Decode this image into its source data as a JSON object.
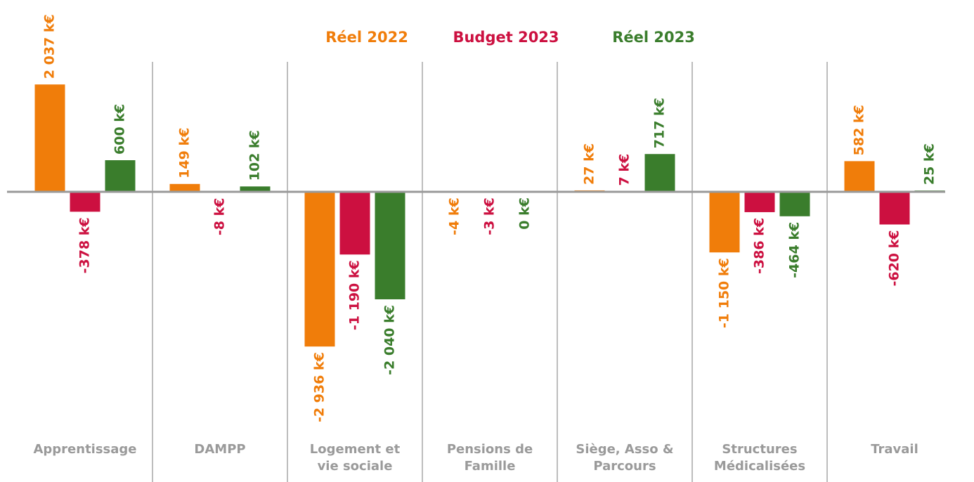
{
  "chart_data": {
    "type": "bar",
    "categories": [
      "Apprentissage",
      "DAMPP",
      "Logement et vie sociale",
      "Pensions de Famille",
      "Siège, Asso & Parcours",
      "Structures Médicalisées",
      "Travail"
    ],
    "series": [
      {
        "name": "Réel 2022",
        "color": "#f07d0a",
        "values": [
          2037,
          149,
          -2936,
          -4,
          27,
          -1150,
          582
        ],
        "value_labels": [
          "2 037 k€",
          "149 k€",
          "-2 936 k€",
          "-4 k€",
          "27 k€",
          "-1 150 k€",
          "582 k€"
        ]
      },
      {
        "name": "Budget 2023",
        "color": "#cc1040",
        "values": [
          -378,
          -8,
          -1190,
          -3,
          7,
          -386,
          -620
        ],
        "value_labels": [
          "-378 k€",
          "-8 k€",
          "-1 190 k€",
          "-3 k€",
          "7 k€",
          "-386 k€",
          "-620 k€"
        ]
      },
      {
        "name": "Réel 2023",
        "color": "#3a7d2c",
        "values": [
          600,
          102,
          -2040,
          0,
          717,
          -464,
          25
        ],
        "value_labels": [
          "600 k€",
          "102 k€",
          "-2 040 k€",
          "0 k€",
          "717 k€",
          "-464 k€",
          "25 k€"
        ]
      }
    ]
  }
}
